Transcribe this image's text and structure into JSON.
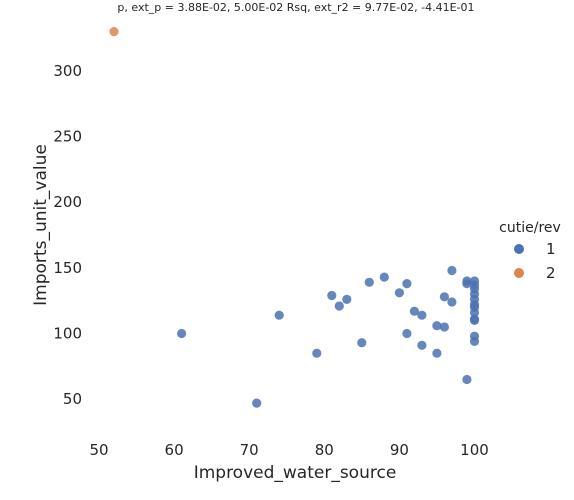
{
  "chart_data": {
    "type": "scatter",
    "title": "p, ext_p = 3.88E-02, 5.00E-02 Rsq, ext_r2 = 9.77E-02, -4.41E-01",
    "xlabel": "Improved_water_source",
    "ylabel": "Imports_unit_value",
    "xlim": [
      50,
      105
    ],
    "ylim": [
      25,
      335
    ],
    "xticks": [
      50,
      60,
      70,
      80,
      90,
      100
    ],
    "yticks": [
      50,
      100,
      150,
      200,
      250,
      300
    ],
    "grid": false,
    "legend": {
      "title": "cutie/rev",
      "placement": "right",
      "entries": [
        {
          "label": "1",
          "color": "#4c72b0"
        },
        {
          "label": "2",
          "color": "#dd8452"
        }
      ]
    },
    "series": [
      {
        "name": "1",
        "color": "#4c72b0",
        "points": [
          [
            61,
            100
          ],
          [
            71,
            47
          ],
          [
            74,
            114
          ],
          [
            79,
            85
          ],
          [
            81,
            129
          ],
          [
            82,
            121
          ],
          [
            83,
            126
          ],
          [
            85,
            93
          ],
          [
            86,
            139
          ],
          [
            88,
            143
          ],
          [
            90,
            131
          ],
          [
            91,
            138
          ],
          [
            91,
            100
          ],
          [
            92,
            117
          ],
          [
            93,
            114
          ],
          [
            93,
            91
          ],
          [
            95,
            106
          ],
          [
            95,
            85
          ],
          [
            96,
            128
          ],
          [
            96,
            105
          ],
          [
            97,
            148
          ],
          [
            97,
            124
          ],
          [
            99,
            140
          ],
          [
            99,
            138
          ],
          [
            99,
            65
          ],
          [
            100,
            140
          ],
          [
            100,
            137
          ],
          [
            100,
            134
          ],
          [
            100,
            130
          ],
          [
            100,
            126
          ],
          [
            100,
            122
          ],
          [
            100,
            120
          ],
          [
            100,
            116
          ],
          [
            100,
            111
          ],
          [
            100,
            110
          ],
          [
            100,
            98
          ],
          [
            100,
            94
          ]
        ]
      },
      {
        "name": "2",
        "color": "#dd8452",
        "points": [
          [
            52,
            330
          ]
        ]
      }
    ]
  }
}
